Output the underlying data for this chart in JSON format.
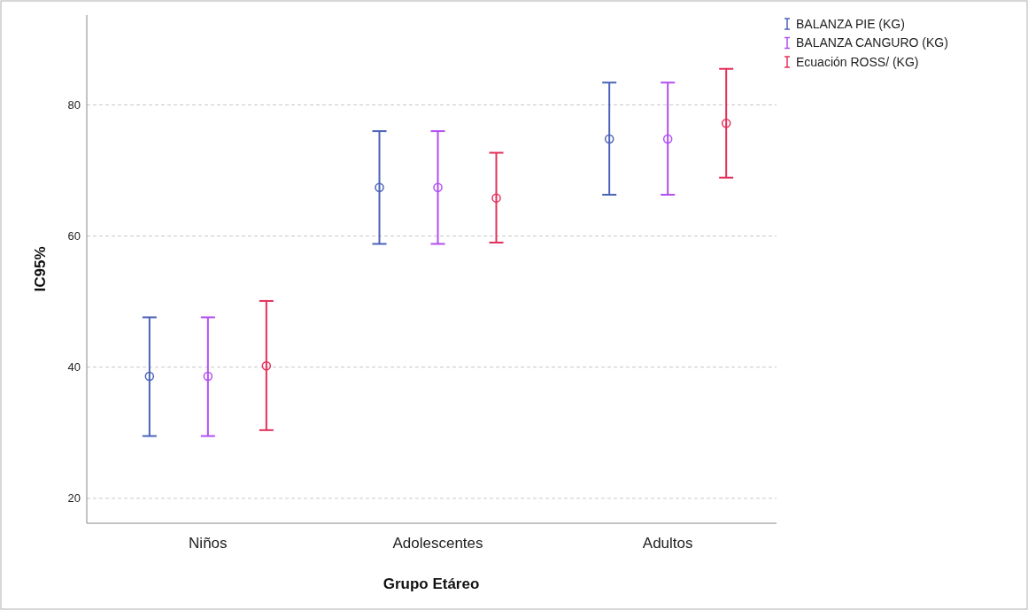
{
  "chart_data": {
    "type": "scatter",
    "xlabel": "Grupo Etáreo",
    "ylabel": "IC95%",
    "categories": [
      "Niños",
      "Adolescentes",
      "Adultos"
    ],
    "ylim": [
      16.2,
      93.7
    ],
    "yticks": [
      20,
      40,
      60,
      80
    ],
    "grid": "y",
    "legend": "top right",
    "marker": "circle",
    "series": [
      {
        "name": "BALANZA PIE (KG)",
        "color": "#4a62b8",
        "values": [
          38.6,
          67.4,
          74.8
        ],
        "errors": [
          [
            29.5,
            47.6
          ],
          [
            58.8,
            76.0
          ],
          [
            66.3,
            83.4
          ]
        ]
      },
      {
        "name": "BALANZA CANGURO (KG)",
        "color": "#b24ef2",
        "values": [
          38.6,
          67.4,
          74.8
        ],
        "errors": [
          [
            29.5,
            47.6
          ],
          [
            58.8,
            76.0
          ],
          [
            66.3,
            83.4
          ]
        ]
      },
      {
        "name": "Ecuación ROSS/ (KG)",
        "color": "#e3305a",
        "values": [
          40.2,
          65.8,
          77.2
        ],
        "errors": [
          [
            30.4,
            50.1
          ],
          [
            59.0,
            72.7
          ],
          [
            68.9,
            85.5
          ]
        ]
      }
    ]
  }
}
